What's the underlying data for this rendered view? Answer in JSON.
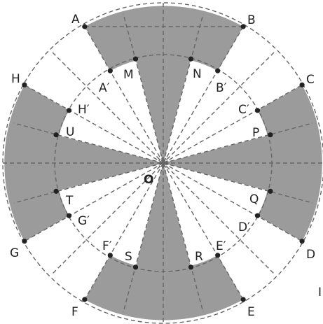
{
  "diagram": {
    "colors": {
      "fill": "#9b9b9b",
      "line": "#666666",
      "point": "#222222",
      "text": "#222222"
    },
    "center_label": "O",
    "points": [
      {
        "label": "A"
      },
      {
        "label": "B"
      },
      {
        "label": "C"
      },
      {
        "label": "D"
      },
      {
        "label": "E"
      },
      {
        "label": "F"
      },
      {
        "label": "G"
      },
      {
        "label": "H"
      },
      {
        "label": "A′"
      },
      {
        "label": "B′"
      },
      {
        "label": "C′"
      },
      {
        "label": "D′"
      },
      {
        "label": "E′"
      },
      {
        "label": "F′"
      },
      {
        "label": "G′"
      },
      {
        "label": "H′"
      },
      {
        "label": "M"
      },
      {
        "label": "N"
      },
      {
        "label": "P"
      },
      {
        "label": "Q"
      },
      {
        "label": "R"
      },
      {
        "label": "S"
      },
      {
        "label": "T"
      },
      {
        "label": "U"
      }
    ],
    "edge_mark": "I"
  }
}
